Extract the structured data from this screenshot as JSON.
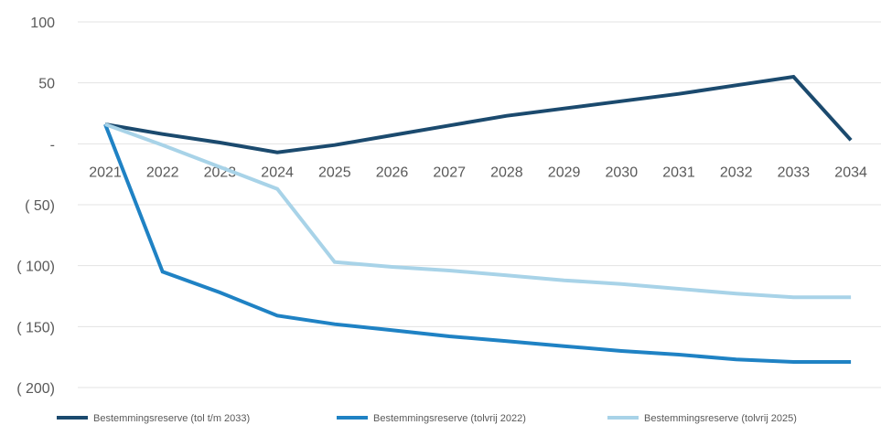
{
  "chart_data": {
    "type": "line",
    "x": [
      "2021",
      "2022",
      "2023",
      "2024",
      "2025",
      "2026",
      "2027",
      "2028",
      "2029",
      "2030",
      "2031",
      "2032",
      "2033",
      "2034"
    ],
    "ylim": [
      -200,
      100
    ],
    "yticks": [
      100,
      50,
      0,
      -50,
      -100,
      -150,
      -200
    ],
    "ytick_labels": [
      "100",
      "50",
      "-",
      "( 50)",
      "( 100)",
      "( 150)",
      "( 200)"
    ],
    "grid": true,
    "legend_position": "bottom",
    "series": [
      {
        "name": "Bestemmingsreserve (tol t/m 2033)",
        "color": "#1b4a6e",
        "values": [
          16,
          8,
          1,
          -7,
          -1,
          7,
          15,
          23,
          29,
          35,
          41,
          48,
          55,
          3
        ]
      },
      {
        "name": "Bestemmingsreserve (tolvrij 2022)",
        "color": "#1f82c4",
        "values": [
          16,
          -105,
          -122,
          -141,
          -148,
          -153,
          -158,
          -162,
          -166,
          -170,
          -173,
          -177,
          -179,
          -179
        ]
      },
      {
        "name": "Bestemmingsreserve (tolvrij 2025)",
        "color": "#a8d3e8",
        "values": [
          16,
          -1,
          -19,
          -37,
          -97,
          -101,
          -104,
          -108,
          -112,
          -115,
          -119,
          -123,
          -126,
          -126
        ]
      }
    ]
  }
}
